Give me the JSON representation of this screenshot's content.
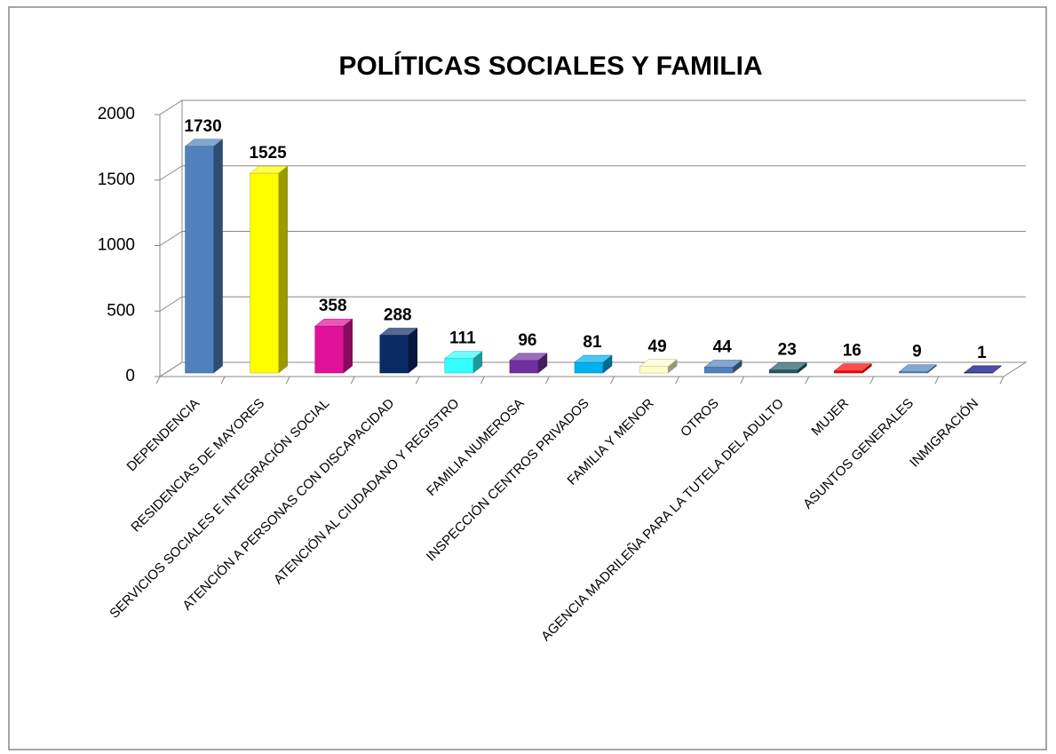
{
  "chart_data": {
    "type": "bar3d",
    "title": "POLÍTICAS SOCIALES Y FAMILIA",
    "categories": [
      "DEPENDENCIA",
      "RESIDENCIAS DE MAYORES",
      "SERVICIOS SOCIALES E INTEGRACIÓN SOCIAL",
      "ATENCIÓN A PERSONAS CON DISCAPACIDAD",
      "ATENCIÓN AL CIUDADANO Y REGISTRO",
      "FAMILIA NUMEROSA",
      "INSPECCIÓN CENTROS PRIVADOS",
      "FAMILIA Y MENOR",
      "OTROS",
      "AGENCIA MADRILEÑA PARA LA TUTELA DEL ADULTO",
      "MUJER",
      "ASUNTOS GENERALES",
      "INMIGRACIÓN"
    ],
    "values": [
      1730,
      1525,
      358,
      288,
      111,
      96,
      81,
      49,
      44,
      23,
      16,
      9,
      1
    ],
    "colors": [
      "#4f81bd",
      "#ffff00",
      "#e0119a",
      "#0a2a66",
      "#33ffff",
      "#7030a0",
      "#00b0f0",
      "#ffffcc",
      "#4f81bd",
      "#215967",
      "#ff0000",
      "#4f81bd",
      "#000080"
    ],
    "ylim": [
      0,
      2000
    ],
    "yticks": [
      0,
      500,
      1000,
      1500,
      2000
    ],
    "grid": true
  }
}
